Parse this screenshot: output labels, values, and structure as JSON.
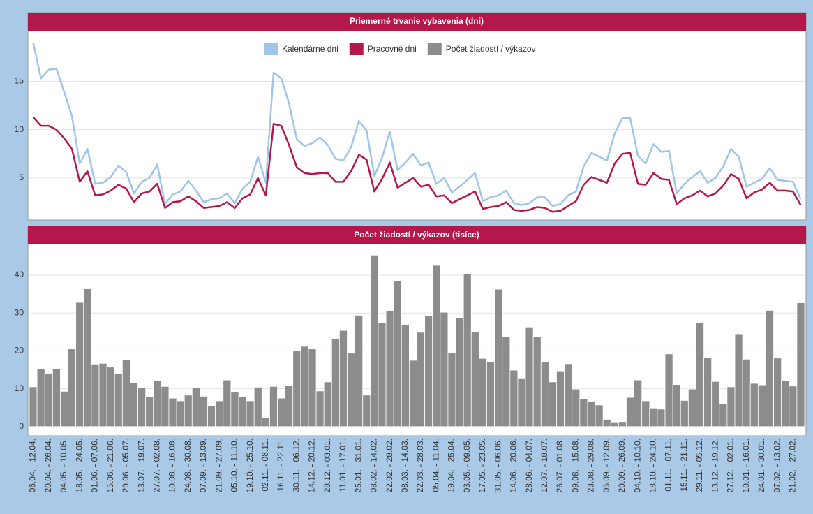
{
  "chart_data": [
    {
      "type": "line",
      "title": "Priemerné trvanie vybavenia (dni)",
      "ylim": [
        0.8,
        19.8
      ],
      "yticks": [
        5,
        10,
        15
      ],
      "grid": true,
      "series": [
        {
          "name": "Kalendárne dni",
          "color": "#9fc5e8",
          "values": [
            19.0,
            15.3,
            16.2,
            16.3,
            13.9,
            11.4,
            6.5,
            8.0,
            4.4,
            4.5,
            5.1,
            6.3,
            5.6,
            3.4,
            4.6,
            5.0,
            6.4,
            2.3,
            3.3,
            3.6,
            4.7,
            3.7,
            2.5,
            2.8,
            2.9,
            3.4,
            2.4,
            3.9,
            4.6,
            7.2,
            4.5,
            15.9,
            15.3,
            12.7,
            9.0,
            8.3,
            8.6,
            9.2,
            8.4,
            7.0,
            6.8,
            8.2,
            10.9,
            9.9,
            5.2,
            7.1,
            9.8,
            5.8,
            6.6,
            7.5,
            6.3,
            6.6,
            4.4,
            5.0,
            3.5,
            4.1,
            4.8,
            5.5,
            2.6,
            3.0,
            3.2,
            3.7,
            2.4,
            2.2,
            2.4,
            3.0,
            3.0,
            2.1,
            2.3,
            3.2,
            3.6,
            6.2,
            7.6,
            7.2,
            6.8,
            9.6,
            11.2,
            11.2,
            7.3,
            6.5,
            8.5,
            7.7,
            7.8,
            3.4,
            4.4,
            5.1,
            5.7,
            4.5,
            5.0,
            6.2,
            8.0,
            7.2,
            4.1,
            4.5,
            4.9,
            6.0,
            4.8,
            4.7,
            4.6,
            2.8
          ]
        },
        {
          "name": "Pracovné dni",
          "color": "#b5174a",
          "values": [
            11.3,
            10.4,
            10.4,
            10.0,
            9.1,
            8.0,
            4.6,
            5.7,
            3.2,
            3.3,
            3.7,
            4.3,
            3.9,
            2.5,
            3.4,
            3.6,
            4.4,
            1.9,
            2.5,
            2.6,
            3.1,
            2.6,
            1.9,
            2.0,
            2.1,
            2.5,
            1.9,
            2.9,
            3.3,
            5.0,
            3.2,
            10.6,
            10.4,
            8.4,
            6.1,
            5.5,
            5.4,
            5.5,
            5.5,
            4.6,
            4.6,
            5.7,
            7.4,
            6.9,
            3.6,
            4.9,
            6.6,
            4.0,
            4.5,
            5.0,
            4.1,
            4.3,
            3.1,
            3.2,
            2.4,
            2.8,
            3.2,
            3.6,
            1.8,
            2.0,
            2.1,
            2.5,
            1.7,
            1.6,
            1.7,
            2.0,
            1.9,
            1.5,
            1.6,
            2.1,
            2.6,
            4.3,
            5.1,
            4.8,
            4.5,
            6.5,
            7.5,
            7.6,
            4.4,
            4.3,
            5.5,
            4.9,
            4.8,
            2.3,
            2.9,
            3.2,
            3.7,
            3.1,
            3.4,
            4.2,
            5.4,
            4.9,
            2.9,
            3.5,
            3.8,
            4.5,
            3.7,
            3.7,
            3.6,
            2.2
          ]
        }
      ]
    },
    {
      "type": "bar",
      "title": "Počet žiadostí / výkazov (tisíce)",
      "ylim": [
        -1.7,
        47.2
      ],
      "yticks": [
        0,
        10,
        20,
        30,
        40
      ],
      "grid": true,
      "categories": [
        "06.04. - 12.04.",
        null,
        "20.04. - 26.04.",
        null,
        "04.05. - 10.05.",
        null,
        "18.05. - 24.05.",
        null,
        "01.06. - 07.06.",
        null,
        "15.06. - 21.06.",
        null,
        "29.06. - 05.07.",
        null,
        "13.07. - 19.07.",
        null,
        "27.07. - 02.08.",
        null,
        "10.08. - 16.08.",
        null,
        "24.08. - 30.08.",
        null,
        "07.09. - 13.09.",
        null,
        "21.09. - 27.09.",
        null,
        "05.10. - 11.10.",
        null,
        "19.10. - 25.10.",
        null,
        "02.11. - 08.11.",
        null,
        "16.11. - 22.11.",
        null,
        "30.11. - 06.12.",
        null,
        "14.12. - 20.12.",
        null,
        "28.12. - 03.01.",
        null,
        "11.01. - 17.01.",
        null,
        "25.01. - 31.01.",
        null,
        "08.02. - 14.02.",
        null,
        "22.02. - 28.02.",
        null,
        "08.03. - 14.03.",
        null,
        "22.03. - 28.03.",
        null,
        "05.04. - 11.04.",
        null,
        "19.04. - 25.04.",
        null,
        "03.05. - 09.05.",
        null,
        "17.05. - 23.05.",
        null,
        "31.05. - 06.06.",
        null,
        "14.06. - 20.06.",
        null,
        "28.06. - 04.07.",
        null,
        "12.07. - 18.07.",
        null,
        "26.07. - 01.08.",
        null,
        "09.08. - 15.08.",
        null,
        "23.08. - 29.08.",
        null,
        "06.09. - 12.09.",
        null,
        "20.09. - 26.09.",
        null,
        "04.10. - 10.10.",
        null,
        "18.10. - 24.10.",
        null,
        "01.11. - 07.11.",
        null,
        "15.11. - 21.11.",
        null,
        "29.11. - 05.12.",
        null,
        "13.12. - 19.12.",
        null,
        "27.12. - 02.01.",
        null,
        "10.01. - 16.01.",
        null,
        "24.01. - 30.01.",
        null,
        "07.02. - 13.02.",
        null,
        "21.02. - 27.02.",
        null
      ],
      "series": [
        {
          "name": "Počet žiadostí / výkazov",
          "color": "#8c8c8c",
          "values": [
            10.5,
            15.2,
            14.0,
            15.3,
            9.3,
            20.5,
            32.8,
            36.4,
            16.5,
            16.7,
            15.7,
            14.0,
            17.6,
            11.6,
            10.3,
            7.8,
            12.2,
            10.6,
            7.5,
            6.8,
            8.3,
            10.3,
            8.0,
            5.5,
            6.8,
            12.3,
            9.1,
            7.8,
            6.8,
            10.4,
            2.3,
            10.6,
            7.5,
            10.9,
            20.1,
            21.2,
            20.5,
            9.4,
            11.8,
            23.2,
            25.4,
            19.4,
            29.4,
            8.3,
            45.3,
            27.5,
            30.6,
            38.6,
            27.0,
            17.5,
            24.9,
            29.3,
            42.6,
            30.2,
            19.4,
            28.7,
            40.4,
            25.1,
            18.0,
            17.0,
            36.3,
            23.7,
            14.9,
            12.8,
            26.3,
            23.7,
            17.0,
            11.8,
            14.7,
            16.6,
            9.9,
            7.3,
            6.7,
            5.7,
            1.9,
            1.2,
            1.3,
            7.7,
            12.3,
            6.8,
            4.9,
            4.6,
            19.2,
            11.1,
            6.9,
            9.9,
            27.5,
            18.3,
            11.9,
            6.0,
            10.5,
            24.5,
            17.8,
            11.4,
            11.0,
            30.7,
            18.1,
            12.1,
            10.7,
            32.7
          ]
        }
      ]
    }
  ]
}
